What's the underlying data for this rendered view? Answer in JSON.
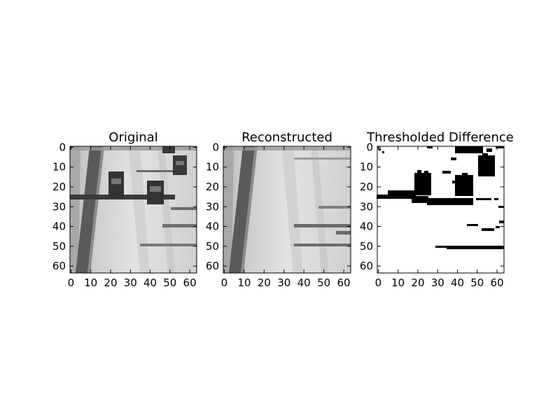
{
  "panels": [
    {
      "title": "Original",
      "content": "grayscale aerial view of a multi-lane highway with vehicles and their shadows"
    },
    {
      "title": "Reconstructed",
      "content": "grayscale highway background with vehicles removed"
    },
    {
      "title": "Thresholded Difference",
      "content": "binary mask of vehicles and shadows in black on white"
    }
  ],
  "axes": {
    "x_ticks": [
      "0",
      "10",
      "20",
      "30",
      "40",
      "50",
      "60"
    ],
    "y_ticks": [
      "0",
      "10",
      "20",
      "30",
      "40",
      "50",
      "60"
    ],
    "range": [
      0,
      63
    ]
  },
  "colors": {
    "background": "#ffffff",
    "axis": "#000000",
    "mask": "#000000"
  }
}
